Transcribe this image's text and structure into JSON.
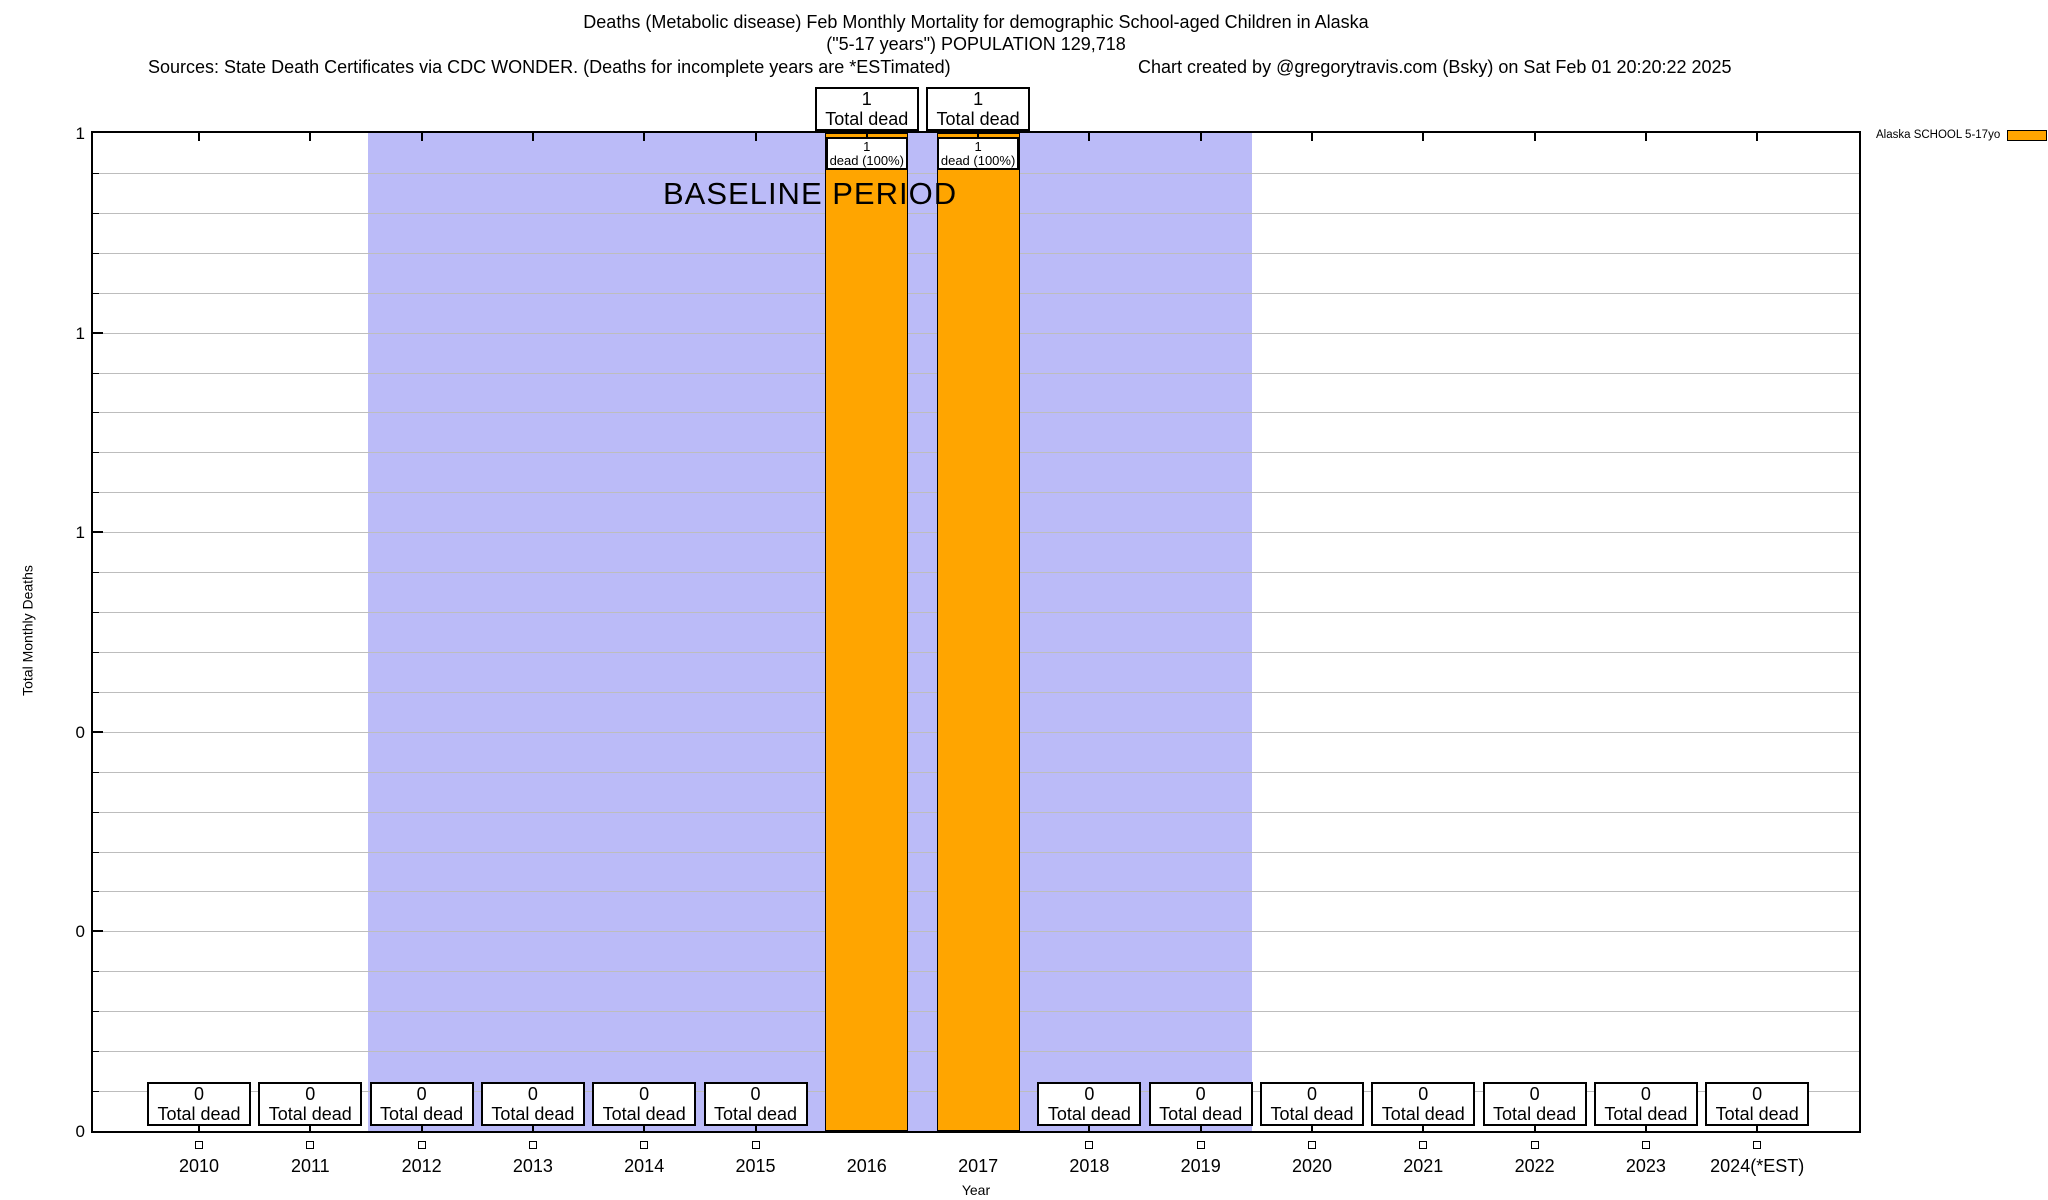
{
  "header": {
    "title_line1": "Deaths (Metabolic disease) Feb Monthly Mortality for demographic School-aged Children in Alaska",
    "title_line2": "(\"5-17 years\") POPULATION 129,718",
    "sources": "Sources: State Death Certificates via CDC WONDER. (Deaths for incomplete years are *ESTimated)",
    "credit": "Chart created by @gregorytravis.com (Bsky) on Sat Feb 01 20:20:22 2025"
  },
  "legend": {
    "label": "Alaska SCHOOL 5-17yo",
    "swatch_color": "#ffa500"
  },
  "axes": {
    "x_label": "Year",
    "y_label": "Total Monthly Deaths"
  },
  "colors": {
    "baseline_fill": "#bbbbf8",
    "bar_fill": "#ffa500",
    "grid": "#bdbdbd",
    "axis": "#000000",
    "background": "#ffffff"
  },
  "chart_data": {
    "type": "bar",
    "title": "Deaths (Metabolic disease) Feb Monthly Mortality for demographic School-aged Children in Alaska (\"5-17 years\") POPULATION 129,718",
    "xlabel": "Year",
    "ylabel": "Total Monthly Deaths",
    "ylim": [
      0,
      1
    ],
    "grid": true,
    "legend_position": "top-right-outside",
    "categories": [
      "2010",
      "2011",
      "2012",
      "2013",
      "2014",
      "2015",
      "2016",
      "2017",
      "2018",
      "2019",
      "2020",
      "2021",
      "2022",
      "2023",
      "2024(*EST)"
    ],
    "series": [
      {
        "name": "Alaska SCHOOL 5-17yo",
        "color": "#ffa500",
        "values": [
          0,
          0,
          0,
          0,
          0,
          0,
          1,
          1,
          0,
          0,
          0,
          0,
          0,
          0,
          0
        ]
      }
    ],
    "y_tick_labels_top_to_bottom": [
      "1",
      "1",
      "1",
      "0",
      "0",
      "0"
    ],
    "baseline_region": {
      "label": "BASELINE PERIOD",
      "from_category": "2012",
      "to_category": "2019",
      "fill": "#bbbbf8"
    },
    "annotations": {
      "zero_year_box": {
        "value": "0",
        "caption": "Total dead"
      },
      "death_year_box": {
        "value": "1",
        "caption": "Total dead"
      },
      "bar_label": {
        "value": "1",
        "caption": "dead (100%)"
      }
    }
  }
}
